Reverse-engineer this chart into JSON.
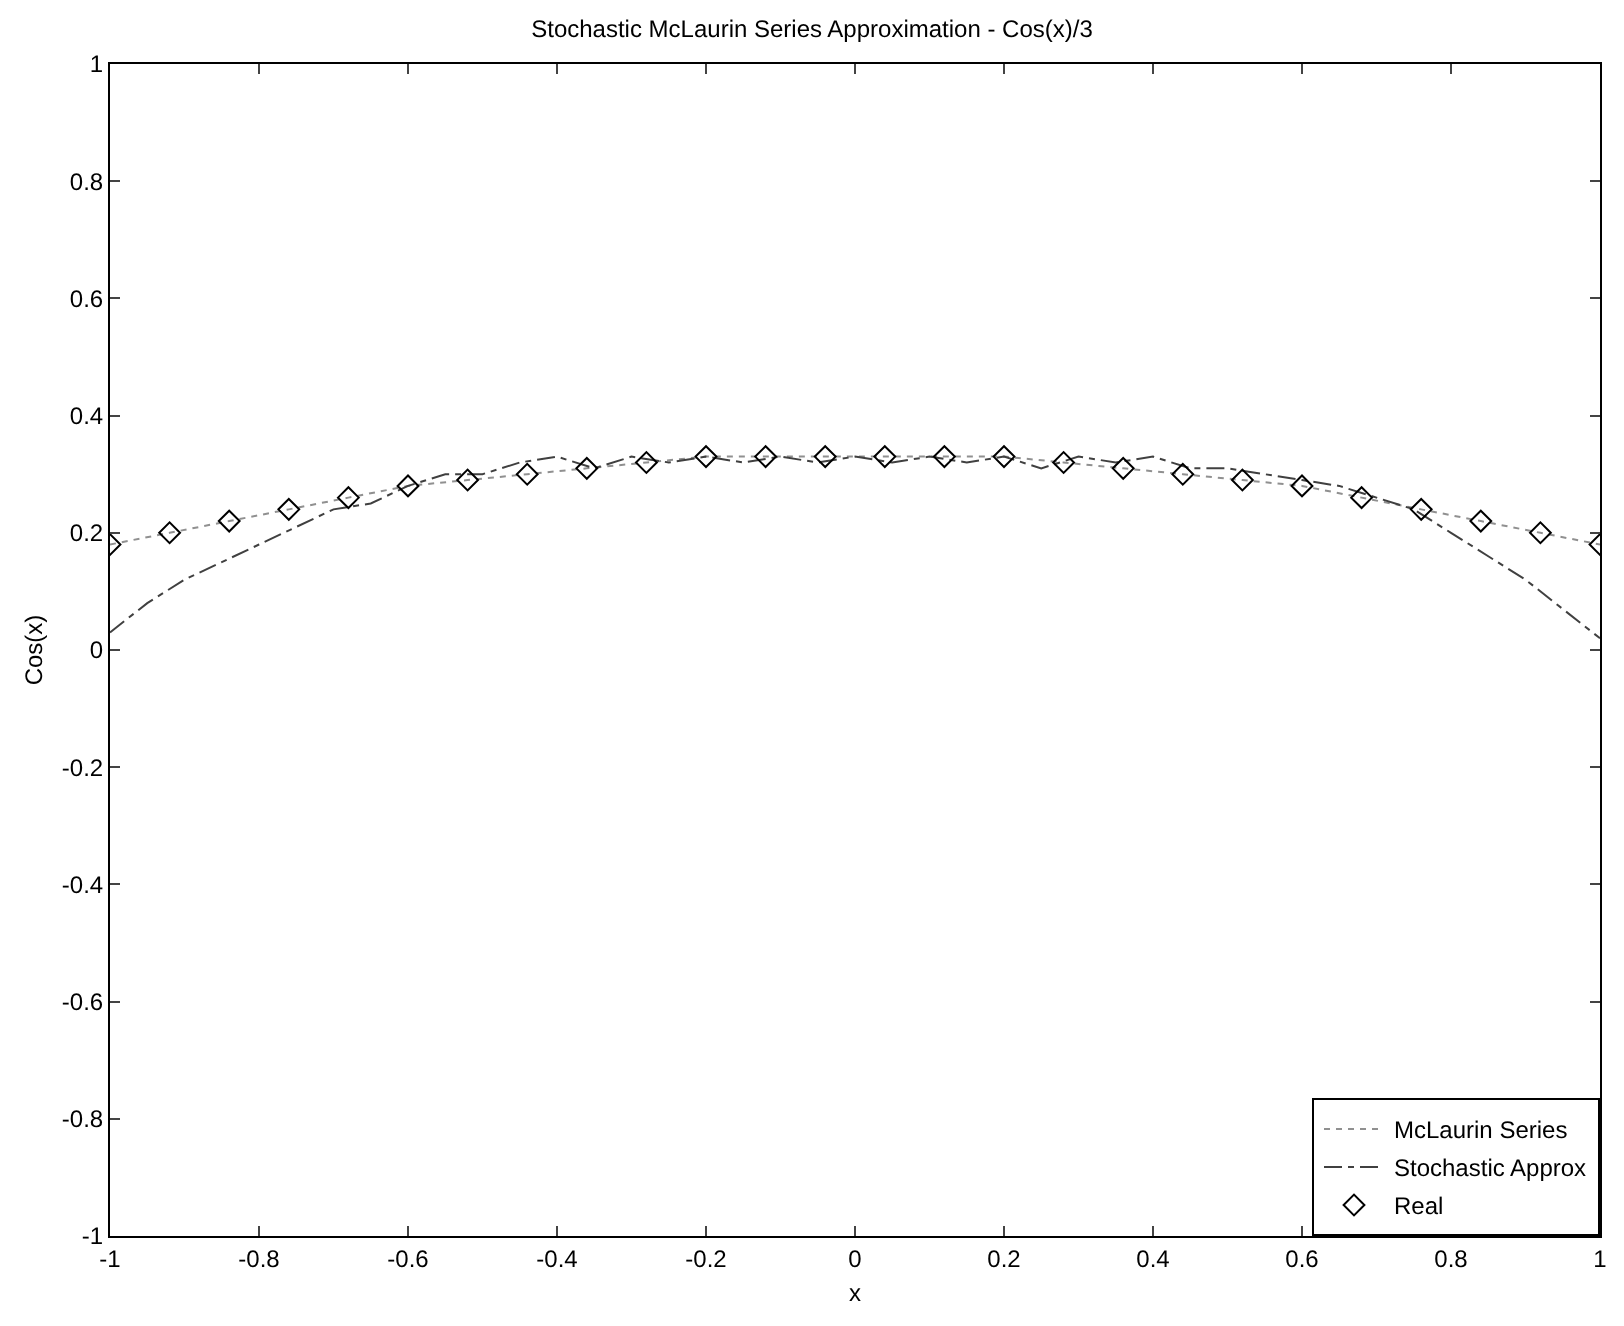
{
  "chart_data": {
    "type": "line",
    "title": "Stochastic McLaurin Series Approximation - Cos(x)/3",
    "xlabel": "x",
    "ylabel": "Cos(x)",
    "xlim": [
      -1,
      1
    ],
    "ylim": [
      -1,
      1
    ],
    "xticks": [
      -1,
      -0.8,
      -0.6,
      -0.4,
      -0.2,
      0,
      0.2,
      0.4,
      0.6,
      0.8,
      1
    ],
    "yticks": [
      -1,
      -0.8,
      -0.6,
      -0.4,
      -0.2,
      0,
      0.2,
      0.4,
      0.6,
      0.8,
      1
    ],
    "grid": false,
    "legend": "bottom right",
    "x": [
      -1,
      -0.92,
      -0.84,
      -0.76,
      -0.68,
      -0.6,
      -0.52,
      -0.44,
      -0.36,
      -0.28,
      -0.2,
      -0.12,
      -0.04,
      0.04,
      0.12,
      0.2,
      0.28,
      0.36,
      0.44,
      0.52,
      0.6,
      0.68,
      0.76,
      0.84,
      0.92,
      1
    ],
    "series": [
      {
        "name": "McLaurin Series",
        "line_style": "dotted",
        "marker": "none",
        "color": "#909090",
        "values": [
          0.18,
          0.2,
          0.22,
          0.24,
          0.26,
          0.28,
          0.29,
          0.3,
          0.31,
          0.32,
          0.33,
          0.33,
          0.33,
          0.33,
          0.33,
          0.33,
          0.32,
          0.31,
          0.3,
          0.29,
          0.28,
          0.26,
          0.24,
          0.22,
          0.2,
          0.18
        ]
      },
      {
        "name": "Stochastic Approx",
        "line_style": "dashed",
        "marker": "none",
        "color": "#404040",
        "x": [
          -1,
          -0.95,
          -0.9,
          -0.85,
          -0.8,
          -0.75,
          -0.7,
          -0.65,
          -0.6,
          -0.55,
          -0.5,
          -0.45,
          -0.4,
          -0.35,
          -0.3,
          -0.25,
          -0.2,
          -0.15,
          -0.1,
          -0.05,
          0,
          0.05,
          0.1,
          0.15,
          0.2,
          0.25,
          0.3,
          0.35,
          0.4,
          0.45,
          0.5,
          0.55,
          0.6,
          0.65,
          0.7,
          0.75,
          0.8,
          0.85,
          0.9,
          0.95,
          1
        ],
        "values": [
          0.03,
          0.08,
          0.12,
          0.15,
          0.18,
          0.21,
          0.24,
          0.25,
          0.28,
          0.3,
          0.3,
          0.32,
          0.33,
          0.31,
          0.33,
          0.32,
          0.33,
          0.32,
          0.33,
          0.32,
          0.33,
          0.32,
          0.33,
          0.32,
          0.33,
          0.31,
          0.33,
          0.32,
          0.33,
          0.31,
          0.31,
          0.3,
          0.29,
          0.28,
          0.26,
          0.24,
          0.2,
          0.16,
          0.12,
          0.07,
          0.02
        ]
      },
      {
        "name": "Real",
        "type": "scatter",
        "marker": "diamond",
        "color": "#000000",
        "values": [
          0.18,
          0.2,
          0.22,
          0.24,
          0.26,
          0.28,
          0.29,
          0.3,
          0.31,
          0.32,
          0.33,
          0.33,
          0.33,
          0.33,
          0.33,
          0.33,
          0.32,
          0.31,
          0.3,
          0.29,
          0.28,
          0.26,
          0.24,
          0.22,
          0.2,
          0.18
        ]
      }
    ]
  }
}
